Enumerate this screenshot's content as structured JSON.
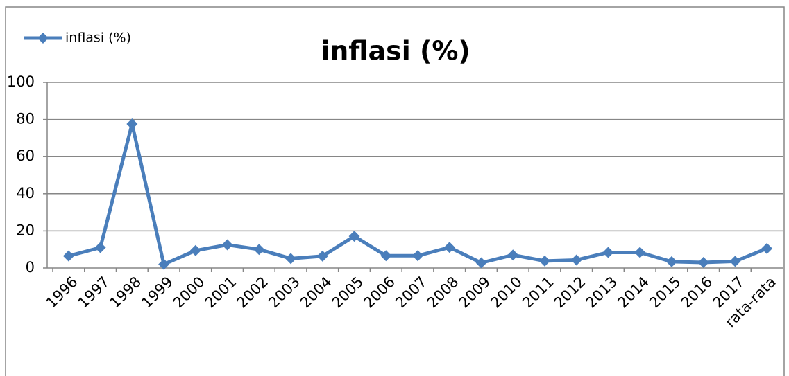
{
  "chart_data": {
    "type": "line",
    "title": "inflasi (%)",
    "categories": [
      "1996",
      "1997",
      "1998",
      "1999",
      "2000",
      "2001",
      "2002",
      "2003",
      "2004",
      "2005",
      "2006",
      "2007",
      "2008",
      "2009",
      "2010",
      "2011",
      "2012",
      "2013",
      "2014",
      "2015",
      "2016",
      "2017",
      "rata-rata"
    ],
    "series": [
      {
        "name": "inflasi (%)",
        "color": "#4a7ebb",
        "values": [
          6.5,
          11,
          77.6,
          2,
          9.4,
          12.5,
          10,
          5.1,
          6.4,
          17.1,
          6.6,
          6.6,
          11.1,
          2.8,
          7,
          3.8,
          4.3,
          8.4,
          8.4,
          3.4,
          3,
          3.6,
          10.5
        ]
      }
    ],
    "ylim": [
      0,
      100
    ],
    "yticks": [
      0,
      20,
      40,
      60,
      80,
      100
    ],
    "grid": true,
    "legend": "top-left"
  }
}
